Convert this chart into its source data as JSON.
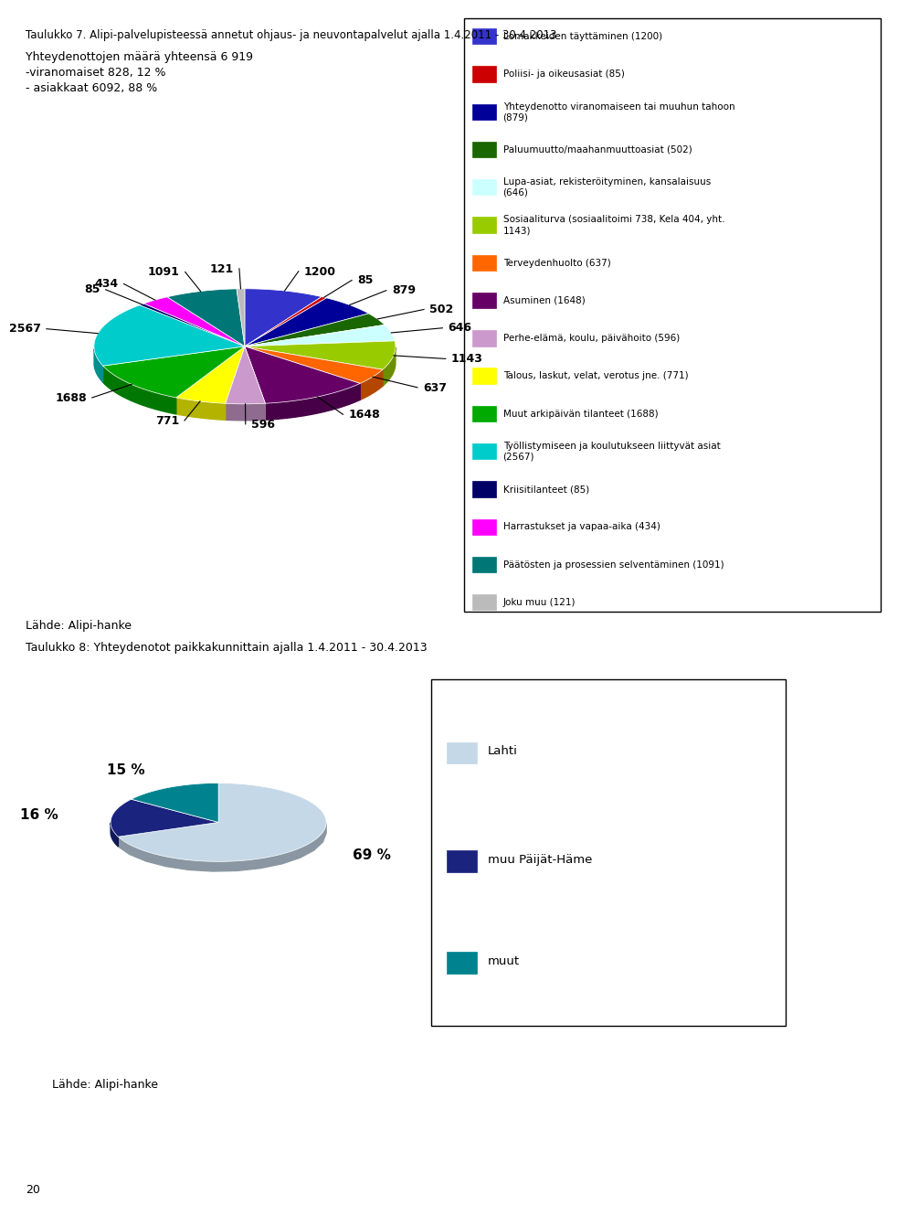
{
  "title1": "Taulukko 7. Alipi-palvelupisteessä annetut ohjaus- ja neuvontapalvelut ajalla 1.4.2011 - 30.4.2013",
  "subtitle_lines": [
    "Yhteydenottojen määrä yhteensä 6 919",
    "-viranomaiset 828, 12 %",
    "- asiakkaat 6092, 88 %"
  ],
  "title2": "Taulukko 8: Yhteydenotot paikkakunnittain ajalla 1.4.2011 - 30.4.2013",
  "source_label": "Lähde: Alipi-hanke",
  "page_number": "20",
  "pie1": {
    "values": [
      1200,
      85,
      879,
      502,
      646,
      1143,
      637,
      1648,
      596,
      771,
      1688,
      2567,
      85,
      434,
      1091,
      121
    ],
    "colors": [
      "#3333CC",
      "#CC0000",
      "#000099",
      "#1A6600",
      "#CCFFFF",
      "#99CC00",
      "#FF6600",
      "#660066",
      "#CC99CC",
      "#FFFF00",
      "#00AA00",
      "#00CCCC",
      "#000066",
      "#FF00FF",
      "#007777",
      "#BBBBBB"
    ],
    "labels": [
      "1200",
      "85",
      "879",
      "502",
      "646",
      "1143",
      "637",
      "1648",
      "596",
      "771",
      "1688",
      "2567",
      "85",
      "434",
      "1091",
      "121"
    ],
    "legend_labels": [
      "Lomakkeiden täyttäminen (1200)",
      "Poliisi- ja oikeusasiat (85)",
      "Yhteydenotto viranomaiseen tai muuhun tahoon\n(879)",
      "Paluumuutto/maahanmuuttoasiat (502)",
      "Lupa-asiat, rekisteröityminen, kansalaisuus\n(646)",
      "Sosiaaliturva (sosiaalitoimi 738, Kela 404, yht.\n1143)",
      "Terveydenhuolto (637)",
      "Asuminen (1648)",
      "Perhe-elämä, koulu, päivähoito (596)",
      "Talous, laskut, velat, verotus jne. (771)",
      "Muut arkipäivän tilanteet (1688)",
      "Työllistymiseen ja koulutukseen liittyvät asiat\n(2567)",
      "Kriisitilanteet (85)",
      "Harrastukset ja vapaa-aika (434)",
      "Päätösten ja prosessien selventäminen (1091)",
      "Joku muu (121)"
    ]
  },
  "pie2": {
    "values": [
      69,
      16,
      15
    ],
    "colors": [
      "#C5D8E8",
      "#1A237E",
      "#00838F"
    ],
    "labels": [
      "69 %",
      "16 %",
      "15 %"
    ],
    "legend_labels": [
      "Lahti",
      "muu Päijät-Häme",
      "muut"
    ]
  }
}
